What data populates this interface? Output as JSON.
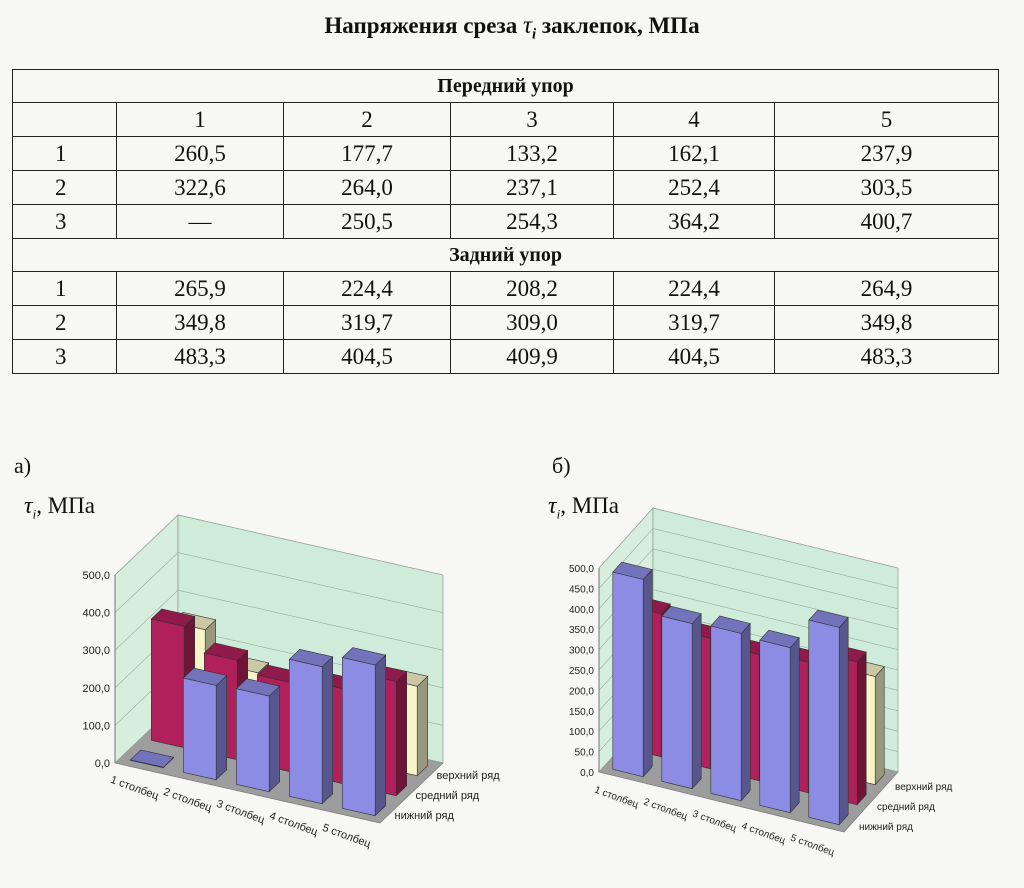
{
  "title": {
    "prefix": "Напряжения среза",
    "symbol": "τ",
    "sub": "i",
    "suffix": "заклепок, МПа"
  },
  "table": {
    "columns": [
      "1",
      "2",
      "3",
      "4",
      "5"
    ],
    "sections": [
      {
        "label": "Передний упор",
        "rows": [
          {
            "row": "1",
            "values": [
              "260,5",
              "177,7",
              "133,2",
              "162,1",
              "237,9"
            ]
          },
          {
            "row": "2",
            "values": [
              "322,6",
              "264,0",
              "237,1",
              "252,4",
              "303,5"
            ]
          },
          {
            "row": "3",
            "values": [
              "—",
              "250,5",
              "254,3",
              "364,2",
              "400,7"
            ]
          }
        ]
      },
      {
        "label": "Задний упор",
        "rows": [
          {
            "row": "1",
            "values": [
              "265,9",
              "224,4",
              "208,2",
              "224,4",
              "264,9"
            ]
          },
          {
            "row": "2",
            "values": [
              "349,8",
              "319,7",
              "309,0",
              "319,7",
              "349,8"
            ]
          },
          {
            "row": "3",
            "values": [
              "483,3",
              "404,5",
              "409,9",
              "404,5",
              "483,3"
            ]
          }
        ]
      }
    ]
  },
  "chart_data": [
    {
      "type": "bar",
      "panel_label": "а)",
      "ylabel": {
        "symbol": "τ",
        "sub": "i",
        "unit": ", МПа"
      },
      "ylim": [
        0,
        500
      ],
      "yticks": [
        "500,0",
        "400,0",
        "300,0",
        "200,0",
        "100,0",
        "0,0"
      ],
      "categories": [
        "1 столбец",
        "2 столбец",
        "3 столбец",
        "4 столбец",
        "5 столбец"
      ],
      "series": [
        {
          "name": "нижний ряд",
          "color": "#8c8ce4",
          "values": [
            0,
            250.5,
            254.3,
            364.2,
            400.7
          ]
        },
        {
          "name": "средний ряд",
          "color": "#b0205a",
          "values": [
            322.6,
            264.0,
            237.1,
            252.4,
            303.5
          ]
        },
        {
          "name": "верхний ряд",
          "color": "#f7f5c8",
          "values": [
            260.5,
            177.7,
            133.2,
            162.1,
            237.9
          ]
        }
      ]
    },
    {
      "type": "bar",
      "panel_label": "б)",
      "ylabel": {
        "symbol": "τ",
        "sub": "i",
        "unit": ", МПа"
      },
      "ylim": [
        0,
        500
      ],
      "yticks": [
        "500,0",
        "450,0",
        "400,0",
        "350,0",
        "300,0",
        "250,0",
        "200,0",
        "150,0",
        "100,0",
        "50,0",
        "0,0"
      ],
      "categories": [
        "1 столбец",
        "2 столбец",
        "3 столбец",
        "4 столбец",
        "5 столбец"
      ],
      "series": [
        {
          "name": "нижний ряд",
          "color": "#8c8ce4",
          "values": [
            483.3,
            404.5,
            409.9,
            404.5,
            483.3
          ]
        },
        {
          "name": "средний ряд",
          "color": "#b0205a",
          "values": [
            349.8,
            319.7,
            309.0,
            319.7,
            349.8
          ]
        },
        {
          "name": "верхний ряд",
          "color": "#f7f5c8",
          "values": [
            265.9,
            224.4,
            208.2,
            224.4,
            264.9
          ]
        }
      ]
    }
  ]
}
